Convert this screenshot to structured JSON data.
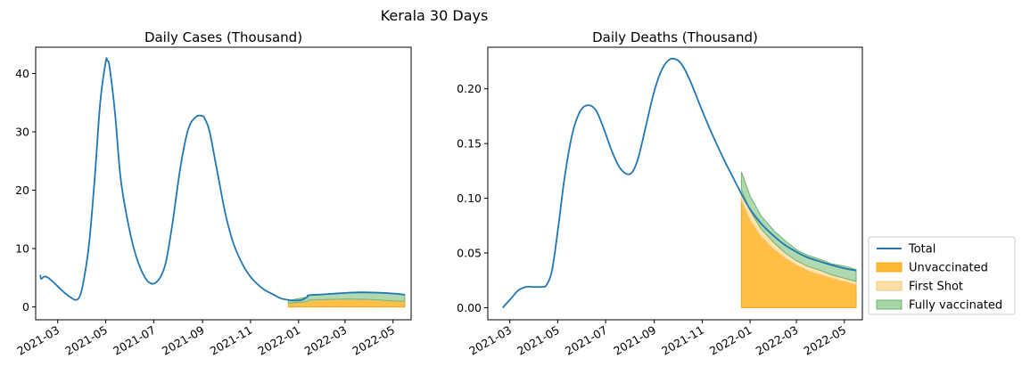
{
  "suptitle": "Kerala 30 Days",
  "legend": {
    "position": "lower-right-outside",
    "entries": [
      {
        "name": "Total",
        "kind": "line",
        "color": "#1f77b4"
      },
      {
        "name": "Unvaccinated",
        "kind": "area",
        "color": "#ffb732"
      },
      {
        "name": "First Shot",
        "kind": "area",
        "color": "#fde0a8"
      },
      {
        "name": "Fully vaccinated",
        "kind": "area",
        "color": "#a8d5a8"
      }
    ]
  },
  "chart_data": [
    {
      "type": "line",
      "title": "Daily Cases (Thousand)",
      "xlabel": "",
      "ylabel": "",
      "x_range": [
        "2021-02-01",
        "2022-05-24"
      ],
      "ylim": [
        -2.2,
        44.5
      ],
      "yticks": [
        0,
        10,
        20,
        30,
        40
      ],
      "ytick_labels": [
        "0",
        "10",
        "20",
        "30",
        "40"
      ],
      "xticks": [
        "2021-03-01",
        "2021-05-01",
        "2021-07-01",
        "2021-09-01",
        "2021-11-01",
        "2022-01-01",
        "2022-03-01",
        "2022-05-01"
      ],
      "xtick_labels": [
        "2021-03",
        "2021-05",
        "2021-07",
        "2021-09",
        "2021-11",
        "2022-01",
        "2022-03",
        "2022-05"
      ],
      "series": [
        {
          "name": "Total",
          "x": [
            "2021-02-07",
            "2021-02-08",
            "2021-02-12",
            "2021-02-17",
            "2021-02-27",
            "2021-03-09",
            "2021-03-19",
            "2021-03-24",
            "2021-03-29",
            "2021-04-03",
            "2021-04-10",
            "2021-04-17",
            "2021-04-24",
            "2021-05-01",
            "2021-05-03",
            "2021-05-06",
            "2021-05-13",
            "2021-05-20",
            "2021-05-30",
            "2021-06-09",
            "2021-06-20",
            "2021-06-28",
            "2021-07-04",
            "2021-07-11",
            "2021-07-17",
            "2021-07-25",
            "2021-08-04",
            "2021-08-14",
            "2021-08-24",
            "2021-09-01",
            "2021-09-04",
            "2021-09-10",
            "2021-09-20",
            "2021-09-30",
            "2021-10-10",
            "2021-10-20",
            "2021-10-30",
            "2021-11-09",
            "2021-11-19",
            "2021-11-29",
            "2021-12-09",
            "2021-12-19",
            "2021-12-26",
            "2022-01-05",
            "2022-01-12",
            "2022-01-14",
            "2022-02-01",
            "2022-03-01",
            "2022-03-20",
            "2022-04-10",
            "2022-05-01",
            "2022-05-16"
          ],
          "y": [
            5.5,
            4.8,
            5.2,
            5.0,
            3.8,
            2.5,
            1.5,
            1.2,
            1.8,
            4.5,
            11.0,
            22.0,
            35.0,
            42.0,
            42.2,
            41.0,
            33.0,
            22.0,
            14.0,
            8.5,
            5.0,
            4.0,
            4.2,
            5.5,
            8.0,
            14.5,
            24.0,
            30.5,
            32.6,
            32.7,
            32.2,
            30.0,
            23.0,
            16.0,
            11.0,
            7.8,
            5.5,
            4.0,
            2.9,
            2.2,
            1.5,
            1.2,
            1.1,
            1.2,
            1.7,
            2.0,
            2.15,
            2.4,
            2.5,
            2.45,
            2.3,
            2.1
          ]
        },
        {
          "name": "Unvaccinated",
          "x": [
            "2021-12-19",
            "2022-01-12",
            "2022-01-14",
            "2022-02-01",
            "2022-03-01",
            "2022-04-01",
            "2022-05-01",
            "2022-05-16"
          ],
          "y": [
            0.55,
            0.8,
            1.0,
            1.1,
            1.2,
            1.15,
            0.95,
            0.85
          ]
        },
        {
          "name": "First Shot",
          "x": [
            "2021-12-19",
            "2022-01-12",
            "2022-01-14",
            "2022-02-01",
            "2022-03-01",
            "2022-04-01",
            "2022-05-01",
            "2022-05-16"
          ],
          "y": [
            0.1,
            0.1,
            0.15,
            0.15,
            0.15,
            0.15,
            0.1,
            0.1
          ]
        },
        {
          "name": "Fully vaccinated",
          "x": [
            "2021-12-19",
            "2022-01-12",
            "2022-01-14",
            "2022-02-01",
            "2022-03-01",
            "2022-04-01",
            "2022-05-01",
            "2022-05-16"
          ],
          "y": [
            0.45,
            0.8,
            0.85,
            0.9,
            1.05,
            1.15,
            1.2,
            1.15
          ]
        }
      ]
    },
    {
      "type": "line",
      "title": "Daily Deaths (Thousand)",
      "xlabel": "",
      "ylabel": "",
      "x_range": [
        "2021-02-01",
        "2022-05-24"
      ],
      "ylim": [
        -0.011,
        0.238
      ],
      "yticks": [
        0.0,
        0.05,
        0.1,
        0.15,
        0.2
      ],
      "ytick_labels": [
        "0.00",
        "0.05",
        "0.10",
        "0.15",
        "0.20"
      ],
      "xticks": [
        "2021-03-01",
        "2021-05-01",
        "2021-07-01",
        "2021-09-01",
        "2021-11-01",
        "2022-01-01",
        "2022-03-01",
        "2022-05-01"
      ],
      "xtick_labels": [
        "2021-03",
        "2021-05",
        "2021-07",
        "2021-09",
        "2021-11",
        "2022-01",
        "2022-03",
        "2022-05"
      ],
      "series": [
        {
          "name": "Total",
          "x": [
            "2021-02-20",
            "2021-03-02",
            "2021-03-12",
            "2021-03-22",
            "2021-04-01",
            "2021-04-11",
            "2021-04-17",
            "2021-04-24",
            "2021-05-02",
            "2021-05-10",
            "2021-05-20",
            "2021-05-30",
            "2021-06-09",
            "2021-06-19",
            "2021-06-29",
            "2021-07-09",
            "2021-07-19",
            "2021-07-29",
            "2021-08-05",
            "2021-08-12",
            "2021-08-22",
            "2021-09-01",
            "2021-09-11",
            "2021-09-21",
            "2021-10-01",
            "2021-10-08",
            "2021-10-15",
            "2021-10-22",
            "2021-11-01",
            "2021-11-11",
            "2021-11-21",
            "2021-12-01",
            "2021-12-11",
            "2021-12-21",
            "2022-01-01",
            "2022-01-15",
            "2022-02-01",
            "2022-02-15",
            "2022-03-01",
            "2022-03-15",
            "2022-04-01",
            "2022-04-15",
            "2022-05-01",
            "2022-05-16"
          ],
          "y": [
            0.0,
            0.008,
            0.016,
            0.019,
            0.019,
            0.019,
            0.021,
            0.035,
            0.075,
            0.12,
            0.16,
            0.18,
            0.185,
            0.18,
            0.163,
            0.143,
            0.128,
            0.122,
            0.125,
            0.138,
            0.168,
            0.198,
            0.218,
            0.227,
            0.226,
            0.22,
            0.21,
            0.198,
            0.18,
            0.163,
            0.147,
            0.132,
            0.118,
            0.104,
            0.09,
            0.077,
            0.065,
            0.057,
            0.051,
            0.046,
            0.042,
            0.039,
            0.036,
            0.034
          ]
        },
        {
          "name": "Unvaccinated",
          "x": [
            "2021-12-21",
            "2022-01-01",
            "2022-01-15",
            "2022-02-01",
            "2022-02-15",
            "2022-03-01",
            "2022-03-15",
            "2022-04-01",
            "2022-04-15",
            "2022-05-01",
            "2022-05-16"
          ],
          "y": [
            0.098,
            0.08,
            0.065,
            0.053,
            0.045,
            0.039,
            0.034,
            0.03,
            0.027,
            0.024,
            0.021
          ]
        },
        {
          "name": "First Shot",
          "x": [
            "2021-12-21",
            "2022-01-01",
            "2022-01-15",
            "2022-02-01",
            "2022-02-15",
            "2022-03-01",
            "2022-03-15",
            "2022-04-01",
            "2022-04-15",
            "2022-05-01",
            "2022-05-16"
          ],
          "y": [
            0.01,
            0.009,
            0.007,
            0.006,
            0.005,
            0.004,
            0.004,
            0.004,
            0.003,
            0.003,
            0.003
          ]
        },
        {
          "name": "Fully vaccinated",
          "x": [
            "2021-12-21",
            "2022-01-01",
            "2022-01-15",
            "2022-02-01",
            "2022-02-15",
            "2022-03-01",
            "2022-03-15",
            "2022-04-01",
            "2022-04-15",
            "2022-05-01",
            "2022-05-16"
          ],
          "y": [
            0.016,
            0.013,
            0.012,
            0.011,
            0.011,
            0.01,
            0.01,
            0.01,
            0.01,
            0.011,
            0.011
          ]
        }
      ]
    }
  ]
}
